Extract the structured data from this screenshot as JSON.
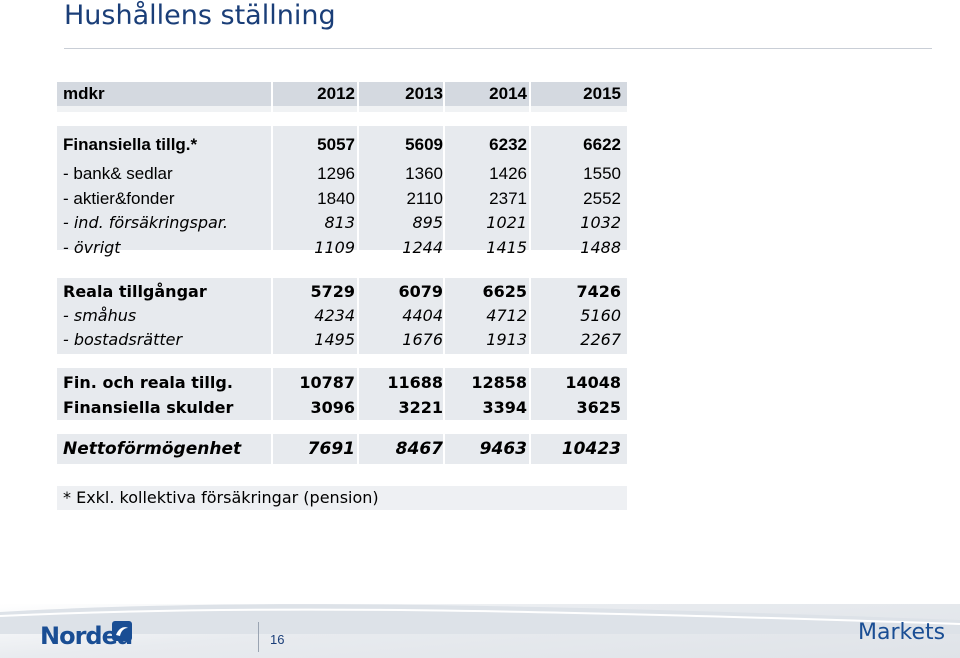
{
  "title": "Hushållens ställning",
  "table": {
    "header": [
      "mdkr",
      "2012",
      "2013",
      "2014",
      "2015"
    ],
    "rows": [
      {
        "label": "Finansiella tillg.*",
        "values": [
          "5057",
          "5609",
          "6232",
          "6622"
        ]
      },
      {
        "label": " - bank& sedlar",
        "values": [
          "1296",
          "1360",
          "1426",
          "1550"
        ]
      },
      {
        "label": " - aktier&fonder",
        "values": [
          "1840",
          "2110",
          "2371",
          "2552"
        ]
      },
      {
        "label": " - ind. försäkringspar.",
        "values": [
          "813",
          "895",
          "1021",
          "1032"
        ]
      },
      {
        "label": " - övrigt",
        "values": [
          "1109",
          "1244",
          "1415",
          "1488"
        ]
      },
      {
        "label": "Reala tillgångar",
        "values": [
          "5729",
          "6079",
          "6625",
          "7426"
        ]
      },
      {
        "label": " - småhus",
        "values": [
          "4234",
          "4404",
          "4712",
          "5160"
        ]
      },
      {
        "label": " - bostadsrätter",
        "values": [
          "1495",
          "1676",
          "1913",
          "2267"
        ]
      },
      {
        "label": "Fin. och reala tillg.",
        "values": [
          "10787",
          "11688",
          "12858",
          "14048"
        ]
      },
      {
        "label": "Finansiella skulder",
        "values": [
          "3096",
          "3221",
          "3394",
          "3625"
        ]
      },
      {
        "label": "Nettoförmögenhet",
        "values": [
          "7691",
          "8467",
          "9463",
          "10423"
        ]
      }
    ],
    "footnote": "* Exkl. kollektiva försäkringar (pension)"
  },
  "footer": {
    "logo": "Nordea",
    "page_number": "16",
    "brand": "Markets",
    "brand_color": "#1a4e94"
  }
}
